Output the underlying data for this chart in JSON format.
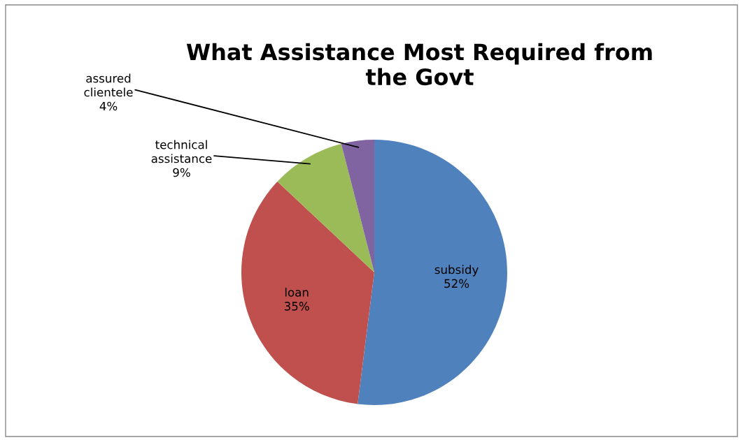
{
  "chart_data": {
    "type": "pie",
    "title": "What Assistance Most Required from\nthe Govt",
    "categories": [
      "subsidy",
      "loan",
      "technical assistance",
      "assured clientele"
    ],
    "values": [
      52,
      35,
      9,
      4
    ],
    "value_labels": [
      "52%",
      "35%",
      "9%",
      "4%"
    ],
    "colors": [
      "#4f81bd",
      "#c0504d",
      "#9bbb59",
      "#8064a2"
    ],
    "legend": false
  }
}
